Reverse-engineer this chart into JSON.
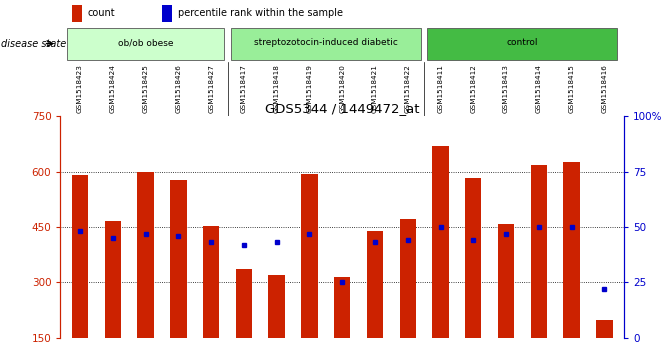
{
  "title": "GDS5344 / 1449472_at",
  "samples": [
    "GSM1518423",
    "GSM1518424",
    "GSM1518425",
    "GSM1518426",
    "GSM1518427",
    "GSM1518417",
    "GSM1518418",
    "GSM1518419",
    "GSM1518420",
    "GSM1518421",
    "GSM1518422",
    "GSM1518411",
    "GSM1518412",
    "GSM1518413",
    "GSM1518414",
    "GSM1518415",
    "GSM1518416"
  ],
  "counts": [
    590,
    465,
    600,
    578,
    453,
    337,
    320,
    593,
    313,
    440,
    472,
    670,
    582,
    457,
    617,
    627,
    198
  ],
  "percentiles": [
    48,
    45,
    47,
    46,
    43,
    42,
    43,
    47,
    25,
    43,
    44,
    50,
    44,
    47,
    50,
    50,
    22
  ],
  "groups": [
    {
      "label": "ob/ob obese",
      "start": 0,
      "end": 4
    },
    {
      "label": "streptozotocin-induced diabetic",
      "start": 5,
      "end": 10
    },
    {
      "label": "control",
      "start": 11,
      "end": 16
    }
  ],
  "group_colors": [
    "#ccffcc",
    "#99ee99",
    "#44bb44"
  ],
  "bar_color": "#cc2200",
  "percentile_color": "#0000cc",
  "ymin": 150,
  "ymax": 750,
  "yticks": [
    150,
    300,
    450,
    600,
    750
  ],
  "right_yticks": [
    0,
    25,
    50,
    75,
    100
  ],
  "grid_lines": [
    300,
    450,
    600
  ],
  "plot_bg": "#ffffff"
}
